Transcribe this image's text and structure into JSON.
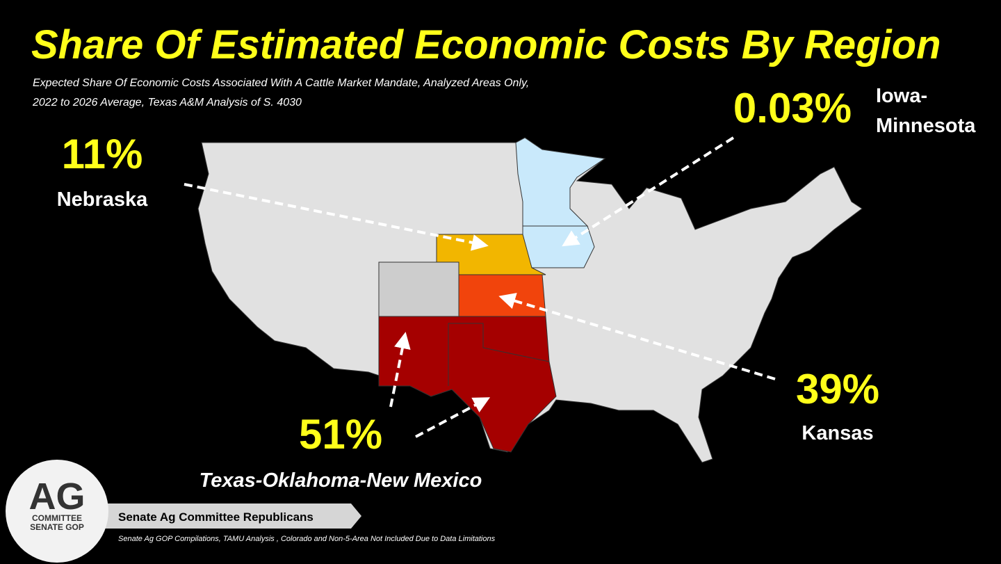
{
  "header": {
    "title": "Share Of Estimated Economic Costs By Region",
    "subtitle": [
      "Expected Share Of Economic Costs Associated With A Cattle Market Mandate, Analyzed Areas Only,",
      "2022 to 2026 Average, Texas A&M Analysis of S. 4030"
    ]
  },
  "regions": [
    {
      "share": "0.03%",
      "name": [
        "Iowa-",
        "Minnesota"
      ],
      "color": "#c9e9fb"
    },
    {
      "share": "11%",
      "name": [
        "Nebraska"
      ],
      "color": "#f2b600"
    },
    {
      "share": "39%",
      "name": [
        "Kansas"
      ],
      "color": "#f1440c"
    },
    {
      "share": "51%",
      "name": [
        "Texas-Oklahoma-New Mexico"
      ],
      "color": "#a50000"
    }
  ],
  "footer": {
    "logo": [
      "AG",
      "COMMITTEE",
      "SENATE GOP"
    ],
    "organization": "Senate Ag Committee Republicans",
    "source": "Senate Ag GOP Compilations, TAMU Analysis , Colorado and Non-5-Area Not Included Due to Data Limitations"
  }
}
